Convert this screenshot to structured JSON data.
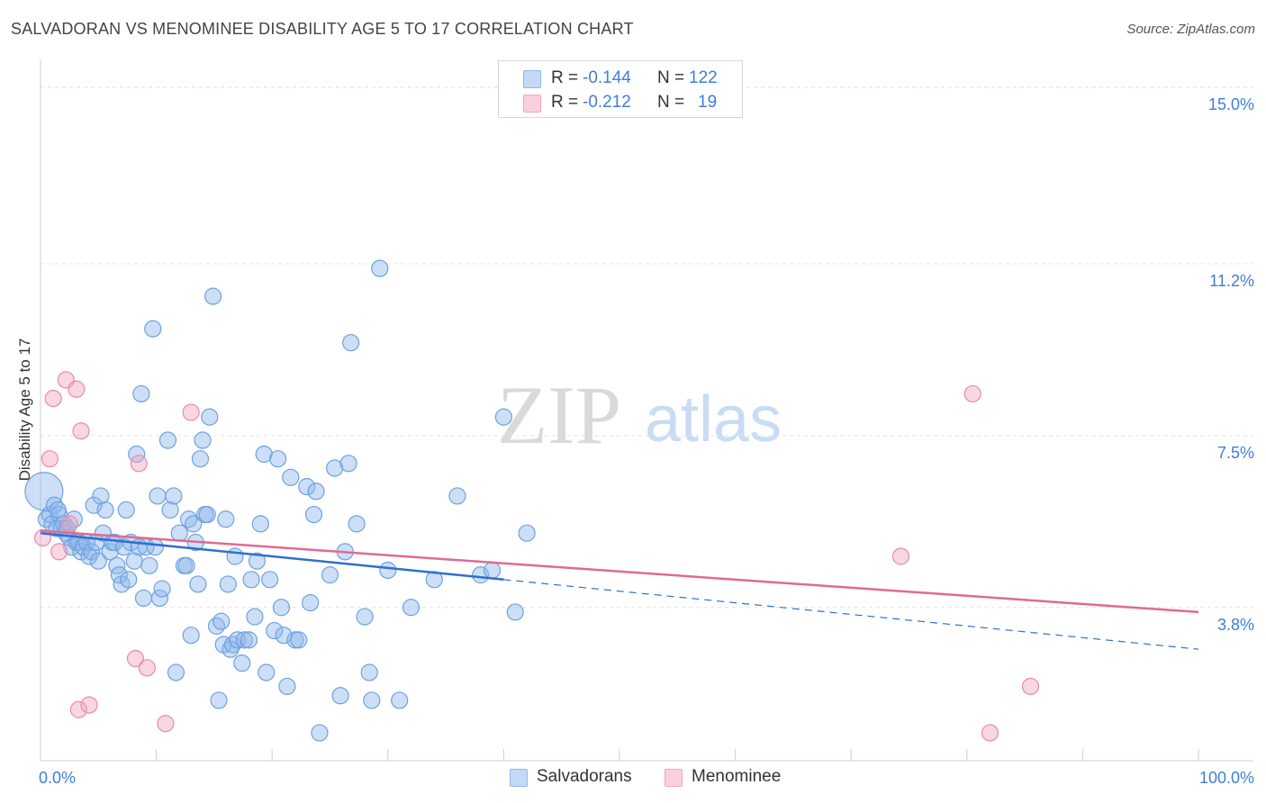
{
  "title": "SALVADORAN VS MENOMINEE DISABILITY AGE 5 TO 17 CORRELATION CHART",
  "source": "Source: ZipAtlas.com",
  "watermark": {
    "zip": "ZIP",
    "atlas": "atlas"
  },
  "legend": {
    "salvadorans": {
      "r_label": "R =",
      "r_value": "-0.144",
      "n_label": "N =",
      "n_value": "122"
    },
    "menominee": {
      "r_label": "R =",
      "r_value": "-0.212",
      "n_label": "N =",
      "n_value": "19"
    }
  },
  "bottom_legend": {
    "salvadorans": "Salvadorans",
    "menominee": "Menominee"
  },
  "chart_data": {
    "type": "scatter",
    "title": "SALVADORAN VS MENOMINEE DISABILITY AGE 5 TO 17 CORRELATION CHART",
    "xlabel": "",
    "ylabel": "Disability Age 5 to 17",
    "xlim": [
      0,
      100
    ],
    "ylim": [
      0.5,
      15.6
    ],
    "x_tick_labels": [
      "0.0%",
      "100.0%"
    ],
    "y_ticks": [
      3.8,
      7.5,
      11.2,
      15.0
    ],
    "y_tick_labels": [
      "3.8%",
      "7.5%",
      "11.2%",
      "15.0%"
    ],
    "colors": {
      "salvadorans": "#8fb8ec",
      "salvadorans_line": "#2f6fd1",
      "menominee": "#f0a5bf",
      "menominee_line": "#e06a94",
      "tick": "#3f7fd6"
    },
    "series": [
      {
        "name": "Salvadorans",
        "trend": {
          "x": [
            0,
            40
          ],
          "y": [
            5.4,
            4.4
          ],
          "dashed_extension_to": [
            100,
            2.9
          ]
        },
        "points": [
          [
            0.3,
            6.3
          ],
          [
            0.5,
            5.7
          ],
          [
            0.8,
            5.8
          ],
          [
            1.0,
            5.6
          ],
          [
            1.2,
            6.0
          ],
          [
            1.4,
            5.5
          ],
          [
            1.6,
            5.8
          ],
          [
            1.8,
            5.5
          ],
          [
            2.0,
            5.6
          ],
          [
            2.2,
            5.4
          ],
          [
            2.5,
            5.3
          ],
          [
            2.7,
            5.1
          ],
          [
            2.9,
            5.7
          ],
          [
            3.1,
            5.2
          ],
          [
            3.3,
            5.2
          ],
          [
            3.5,
            5.0
          ],
          [
            3.7,
            5.1
          ],
          [
            4.0,
            5.2
          ],
          [
            4.2,
            4.9
          ],
          [
            4.4,
            5.0
          ],
          [
            4.6,
            6.0
          ],
          [
            4.8,
            5.2
          ],
          [
            5.0,
            4.8
          ],
          [
            5.2,
            6.2
          ],
          [
            5.4,
            5.4
          ],
          [
            5.6,
            5.9
          ],
          [
            6.0,
            5.0
          ],
          [
            6.2,
            5.2
          ],
          [
            6.4,
            5.2
          ],
          [
            6.6,
            4.7
          ],
          [
            6.8,
            4.5
          ],
          [
            7.0,
            4.3
          ],
          [
            7.2,
            5.1
          ],
          [
            7.4,
            5.9
          ],
          [
            7.6,
            4.4
          ],
          [
            7.8,
            5.2
          ],
          [
            8.1,
            4.8
          ],
          [
            8.3,
            7.1
          ],
          [
            8.5,
            5.1
          ],
          [
            8.7,
            8.4
          ],
          [
            8.9,
            4.0
          ],
          [
            9.1,
            5.1
          ],
          [
            9.4,
            4.7
          ],
          [
            9.7,
            9.8
          ],
          [
            9.9,
            5.1
          ],
          [
            10.1,
            6.2
          ],
          [
            10.3,
            4.0
          ],
          [
            10.5,
            4.2
          ],
          [
            11.0,
            7.4
          ],
          [
            11.2,
            5.9
          ],
          [
            11.5,
            6.2
          ],
          [
            11.7,
            2.4
          ],
          [
            12.0,
            5.4
          ],
          [
            12.4,
            4.7
          ],
          [
            12.6,
            4.7
          ],
          [
            12.8,
            5.7
          ],
          [
            13.0,
            3.2
          ],
          [
            13.2,
            5.6
          ],
          [
            13.4,
            5.2
          ],
          [
            13.6,
            4.3
          ],
          [
            13.8,
            7.0
          ],
          [
            14.0,
            7.4
          ],
          [
            14.2,
            5.8
          ],
          [
            14.4,
            5.8
          ],
          [
            14.6,
            7.9
          ],
          [
            14.9,
            10.5
          ],
          [
            15.2,
            3.4
          ],
          [
            15.4,
            1.8
          ],
          [
            15.6,
            3.5
          ],
          [
            15.8,
            3.0
          ],
          [
            16.0,
            5.7
          ],
          [
            16.2,
            4.3
          ],
          [
            16.4,
            2.9
          ],
          [
            16.6,
            3.0
          ],
          [
            16.8,
            4.9
          ],
          [
            17.0,
            3.1
          ],
          [
            17.4,
            2.6
          ],
          [
            17.6,
            3.1
          ],
          [
            18.0,
            3.1
          ],
          [
            18.2,
            4.4
          ],
          [
            18.5,
            3.6
          ],
          [
            18.7,
            4.8
          ],
          [
            19.0,
            5.6
          ],
          [
            19.3,
            7.1
          ],
          [
            19.5,
            2.4
          ],
          [
            19.8,
            4.4
          ],
          [
            20.2,
            3.3
          ],
          [
            20.5,
            7.0
          ],
          [
            20.8,
            3.8
          ],
          [
            21.0,
            3.2
          ],
          [
            21.3,
            2.1
          ],
          [
            21.6,
            6.6
          ],
          [
            22.0,
            3.1
          ],
          [
            22.3,
            3.1
          ],
          [
            23.0,
            6.4
          ],
          [
            23.3,
            3.9
          ],
          [
            23.6,
            5.8
          ],
          [
            23.8,
            6.3
          ],
          [
            24.1,
            1.1
          ],
          [
            25.0,
            4.5
          ],
          [
            25.4,
            6.8
          ],
          [
            25.9,
            1.9
          ],
          [
            26.3,
            5.0
          ],
          [
            26.6,
            6.9
          ],
          [
            26.8,
            9.5
          ],
          [
            27.3,
            5.6
          ],
          [
            28.0,
            3.6
          ],
          [
            28.4,
            2.4
          ],
          [
            28.6,
            1.8
          ],
          [
            29.3,
            11.1
          ],
          [
            30.0,
            4.6
          ],
          [
            31.0,
            1.8
          ],
          [
            32.0,
            3.8
          ],
          [
            34.0,
            4.4
          ],
          [
            36.0,
            6.2
          ],
          [
            38.0,
            4.5
          ],
          [
            39.0,
            4.6
          ],
          [
            40.0,
            7.9
          ],
          [
            41.0,
            3.7
          ],
          [
            42.0,
            5.4
          ],
          [
            1.5,
            5.9
          ],
          [
            2.3,
            5.5
          ]
        ]
      },
      {
        "name": "Menominee",
        "trend": {
          "x": [
            0,
            100
          ],
          "y": [
            5.45,
            3.7
          ]
        },
        "points": [
          [
            0.2,
            5.3
          ],
          [
            0.8,
            7.0
          ],
          [
            1.1,
            8.3
          ],
          [
            1.6,
            5.0
          ],
          [
            2.2,
            8.7
          ],
          [
            2.5,
            5.6
          ],
          [
            3.1,
            8.5
          ],
          [
            3.5,
            7.6
          ],
          [
            3.3,
            1.6
          ],
          [
            4.2,
            1.7
          ],
          [
            8.2,
            2.7
          ],
          [
            8.5,
            6.9
          ],
          [
            9.2,
            2.5
          ],
          [
            10.8,
            1.3
          ],
          [
            13.0,
            8.0
          ],
          [
            74.3,
            4.9
          ],
          [
            82.0,
            1.1
          ],
          [
            80.5,
            8.4
          ],
          [
            85.5,
            2.1
          ]
        ]
      }
    ]
  }
}
